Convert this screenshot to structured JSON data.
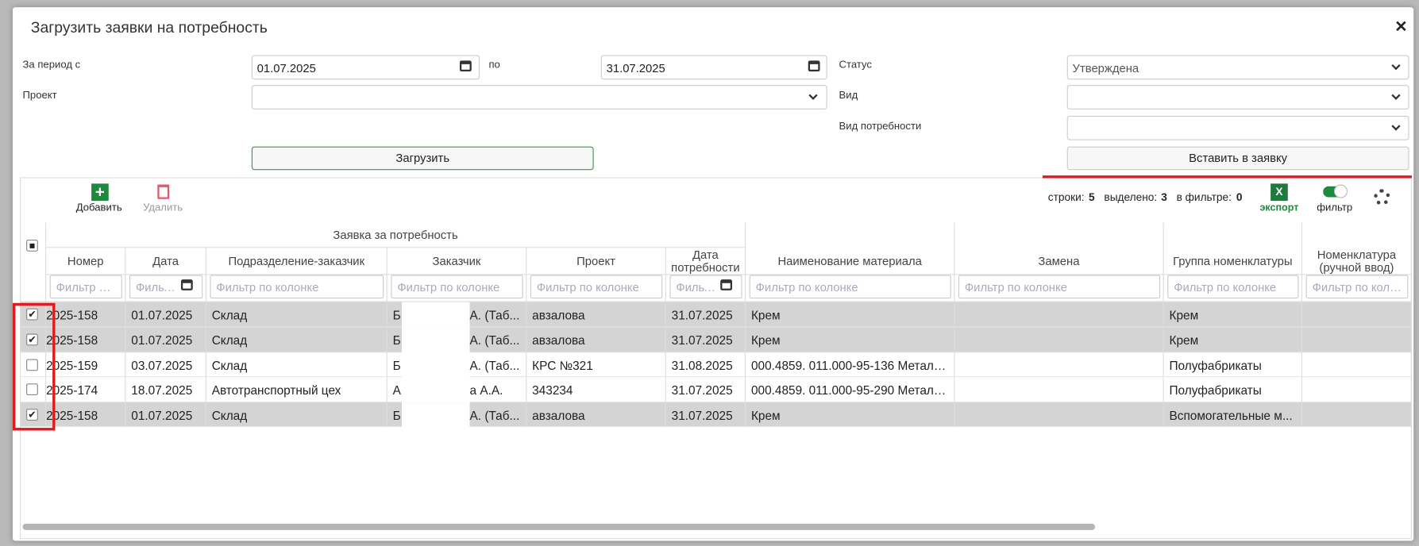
{
  "dialog": {
    "title": "Загрузить заявки на потребность",
    "close": "✕"
  },
  "filters": {
    "period_from_label": "За период с",
    "period_from": "01.07.2025",
    "period_to_label": "по",
    "period_to": "31.07.2025",
    "status_label": "Статус",
    "status": "Утверждена",
    "project_label": "Проект",
    "type_label": "Вид",
    "need_type_label": "Вид потребности"
  },
  "buttons": {
    "load": "Загрузить",
    "insert": "Вставить в заявку"
  },
  "toolbar": {
    "add": "Добавить",
    "delete": "Удалить",
    "rows_label": "строки:",
    "rows": 5,
    "selected_label": "выделено:",
    "selected": 3,
    "in_filter_label": "в фильтре:",
    "in_filter": 0,
    "excel_icon": "X",
    "export": "экспорт",
    "filter": "фильтр"
  },
  "table": {
    "group_header": "Заявка за потребность",
    "columns": [
      "Номер",
      "Дата",
      "Подразделение-заказчик",
      "Заказчик",
      "Проект",
      "Дата потребности",
      "Наименование материала",
      "Замена",
      "Группа номенклатуры",
      "Номенклатура (ручной ввод)"
    ],
    "filter_placeholder": "Фильтр по колонке",
    "rows": [
      {
        "checked": true,
        "number": "2025-158",
        "date": "01.07.2025",
        "department": "Склад",
        "customer_start": "Б",
        "customer_end": "А. (Таб...",
        "project": "авзалова",
        "need_date": "31.07.2025",
        "material": "Крем",
        "group": "Крем"
      },
      {
        "checked": true,
        "number": "2025-158",
        "date": "01.07.2025",
        "department": "Склад",
        "customer_start": "Б",
        "customer_end": "А. (Таб...",
        "project": "авзалова",
        "need_date": "31.07.2025",
        "material": "Крем",
        "group": "Крем"
      },
      {
        "checked": false,
        "number": "2025-159",
        "date": "03.07.2025",
        "department": "Склад",
        "customer_start": "Б",
        "customer_end": "А. (Таб...",
        "project": "КРС №321",
        "need_date": "31.08.2025",
        "material": "000.4859. 011.000-95-136 Металл...",
        "group": "Полуфабрикаты"
      },
      {
        "checked": false,
        "number": "2025-174",
        "date": "18.07.2025",
        "department": "Автотранспортный цех",
        "customer_start": "А",
        "customer_end": "а А.А.",
        "project": "343234",
        "need_date": "31.07.2025",
        "material": "000.4859. 011.000-95-290 Металл...",
        "group": "Полуфабрикаты"
      },
      {
        "checked": true,
        "number": "2025-158",
        "date": "01.07.2025",
        "department": "Склад",
        "customer_start": "Б",
        "customer_end": "А. (Таб...",
        "project": "авзалова",
        "need_date": "31.07.2025",
        "material": "Крем",
        "group": "Вспомогательные м..."
      }
    ]
  }
}
